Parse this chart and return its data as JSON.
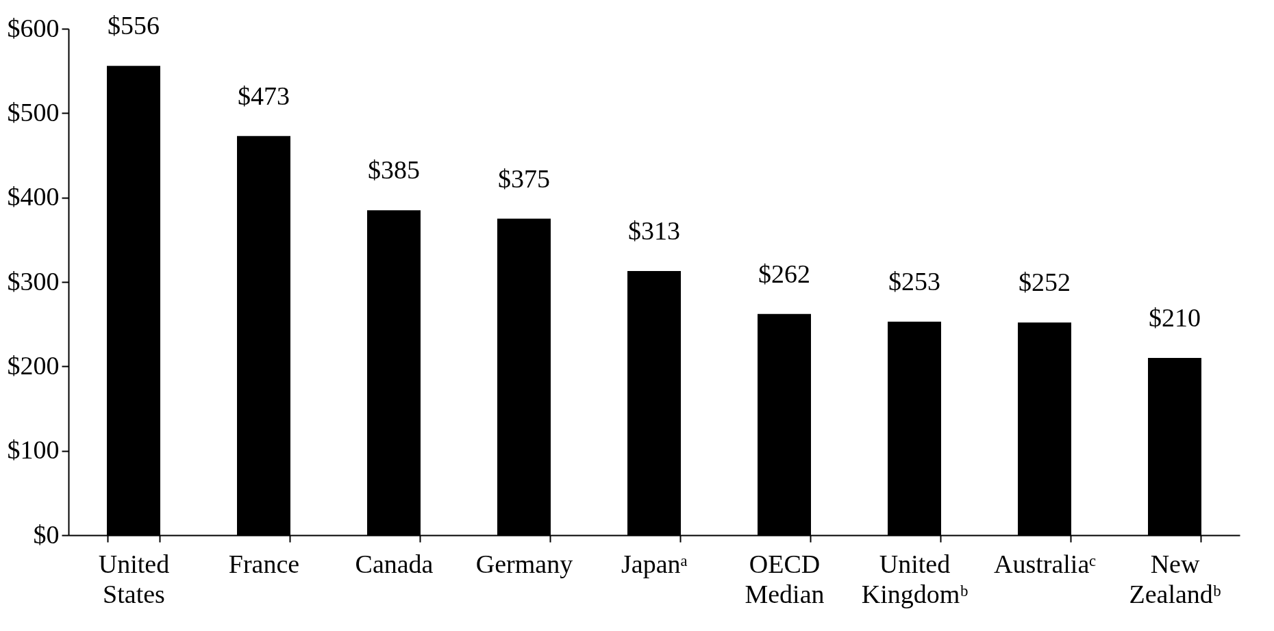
{
  "chart_data": {
    "type": "bar",
    "categories": [
      "United States",
      "France",
      "Canada",
      "Germany",
      "Japanᵃ",
      "OECD Median",
      "United Kingdomᵇ",
      "Australiaᶜ",
      "New Zealandᵇ"
    ],
    "values": [
      556,
      473,
      385,
      375,
      313,
      262,
      253,
      252,
      210
    ],
    "value_labels": [
      "$556",
      "$473",
      "$385",
      "$375",
      "$313",
      "$262",
      "$253",
      "$252",
      "$210"
    ],
    "color": "#000000",
    "ylim": [
      0,
      600
    ],
    "yticks": [
      {
        "value": 0,
        "label": "$0"
      },
      {
        "value": 100,
        "label": "$100"
      },
      {
        "value": 200,
        "label": "$200"
      },
      {
        "value": 300,
        "label": "$300"
      },
      {
        "value": 400,
        "label": "$400"
      },
      {
        "value": 500,
        "label": "$500"
      },
      {
        "value": 600,
        "label": "$600"
      }
    ],
    "grid": false
  }
}
